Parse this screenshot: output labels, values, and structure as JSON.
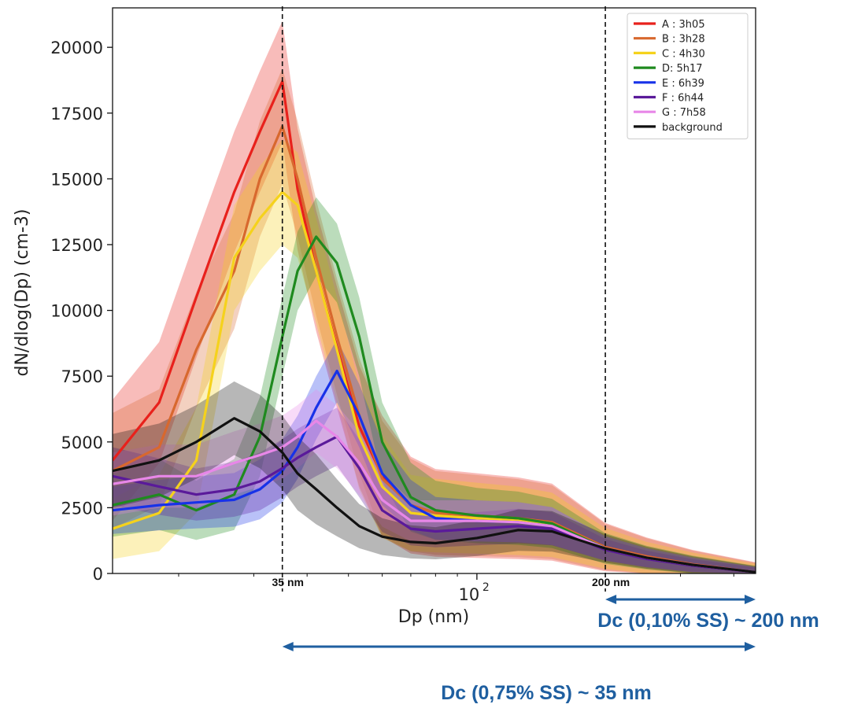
{
  "chart_data": {
    "type": "line",
    "xlabel": "Dp (nm)",
    "ylabel": "dN/dlog(Dp) (cm-3)",
    "xscale": "log",
    "xlim": [
      14,
      450
    ],
    "ylim": [
      0,
      21500
    ],
    "yticks": [
      0,
      2500,
      5000,
      7500,
      10000,
      12500,
      15000,
      17500,
      20000
    ],
    "xtick_label": {
      "base": "10",
      "exp": "2"
    },
    "legend_position": "top-right",
    "x": [
      14,
      18,
      22,
      27,
      31,
      35,
      38,
      42,
      47,
      53,
      60,
      70,
      80,
      100,
      125,
      150,
      200,
      250,
      320,
      450
    ],
    "series": [
      {
        "name": "A : 3h05",
        "color": "#e8211c",
        "values": [
          4300,
          6500,
          10500,
          14500,
          16800,
          18700,
          14600,
          11500,
          8600,
          5600,
          3700,
          2600,
          2300,
          2200,
          2100,
          1950,
          1000,
          650,
          350,
          50
        ],
        "band_width": 2300
      },
      {
        "name": "B : 3h28",
        "color": "#d8682e",
        "values": [
          3900,
          4800,
          8500,
          11500,
          15000,
          17000,
          15000,
          12000,
          9000,
          6000,
          3600,
          2600,
          2300,
          2200,
          2100,
          1950,
          1000,
          650,
          350,
          50
        ],
        "band_width": 2200
      },
      {
        "name": "C : 4h30",
        "color": "#f5d21c",
        "values": [
          1700,
          2300,
          4300,
          12000,
          13500,
          14500,
          14000,
          11500,
          8500,
          5200,
          3300,
          2300,
          2200,
          2100,
          2000,
          1850,
          950,
          600,
          330,
          50
        ],
        "band_width": 2000
      },
      {
        "name": "D: 5h17",
        "color": "#1f8a1f",
        "values": [
          2600,
          3000,
          2400,
          3000,
          5200,
          9000,
          11500,
          12800,
          11800,
          9000,
          5000,
          2900,
          2400,
          2200,
          2100,
          1900,
          950,
          600,
          330,
          50
        ],
        "band_width": 1500
      },
      {
        "name": "E : 6h39",
        "color": "#1732e8",
        "values": [
          2400,
          2600,
          2700,
          2800,
          3200,
          3900,
          4800,
          6300,
          7700,
          6000,
          3800,
          2600,
          2100,
          2000,
          1950,
          1800,
          950,
          600,
          330,
          50
        ],
        "band_width": 1200
      },
      {
        "name": "F : 6h44",
        "color": "#5a1a9a",
        "values": [
          3700,
          3300,
          3000,
          3200,
          3500,
          4000,
          4400,
          4800,
          5200,
          4000,
          2400,
          1700,
          1600,
          1700,
          1800,
          1700,
          900,
          550,
          300,
          50
        ],
        "band_width": 1100
      },
      {
        "name": "G : 7h58",
        "color": "#e887e8",
        "values": [
          3400,
          3700,
          3700,
          4200,
          4500,
          4800,
          5200,
          5800,
          5200,
          4200,
          2800,
          2000,
          2000,
          2000,
          1950,
          1800,
          950,
          600,
          330,
          50
        ],
        "band_width": 1200
      },
      {
        "name": "background",
        "color": "#111111",
        "values": [
          3900,
          4300,
          5000,
          5900,
          5400,
          4600,
          3800,
          3200,
          2500,
          1800,
          1400,
          1200,
          1150,
          1350,
          1650,
          1600,
          950,
          600,
          330,
          50
        ],
        "band_width": 1400
      }
    ],
    "vlines": [
      {
        "x": 35,
        "label": "35 nm"
      },
      {
        "x": 200,
        "label": "200 nm"
      }
    ],
    "annotations": [
      {
        "label": "Dc (0,10% SS) ~ 200 nm",
        "from": 200,
        "to": 450
      },
      {
        "label": "Dc (0,75% SS) ~ 35 nm",
        "from": 35,
        "to": 450
      }
    ]
  }
}
